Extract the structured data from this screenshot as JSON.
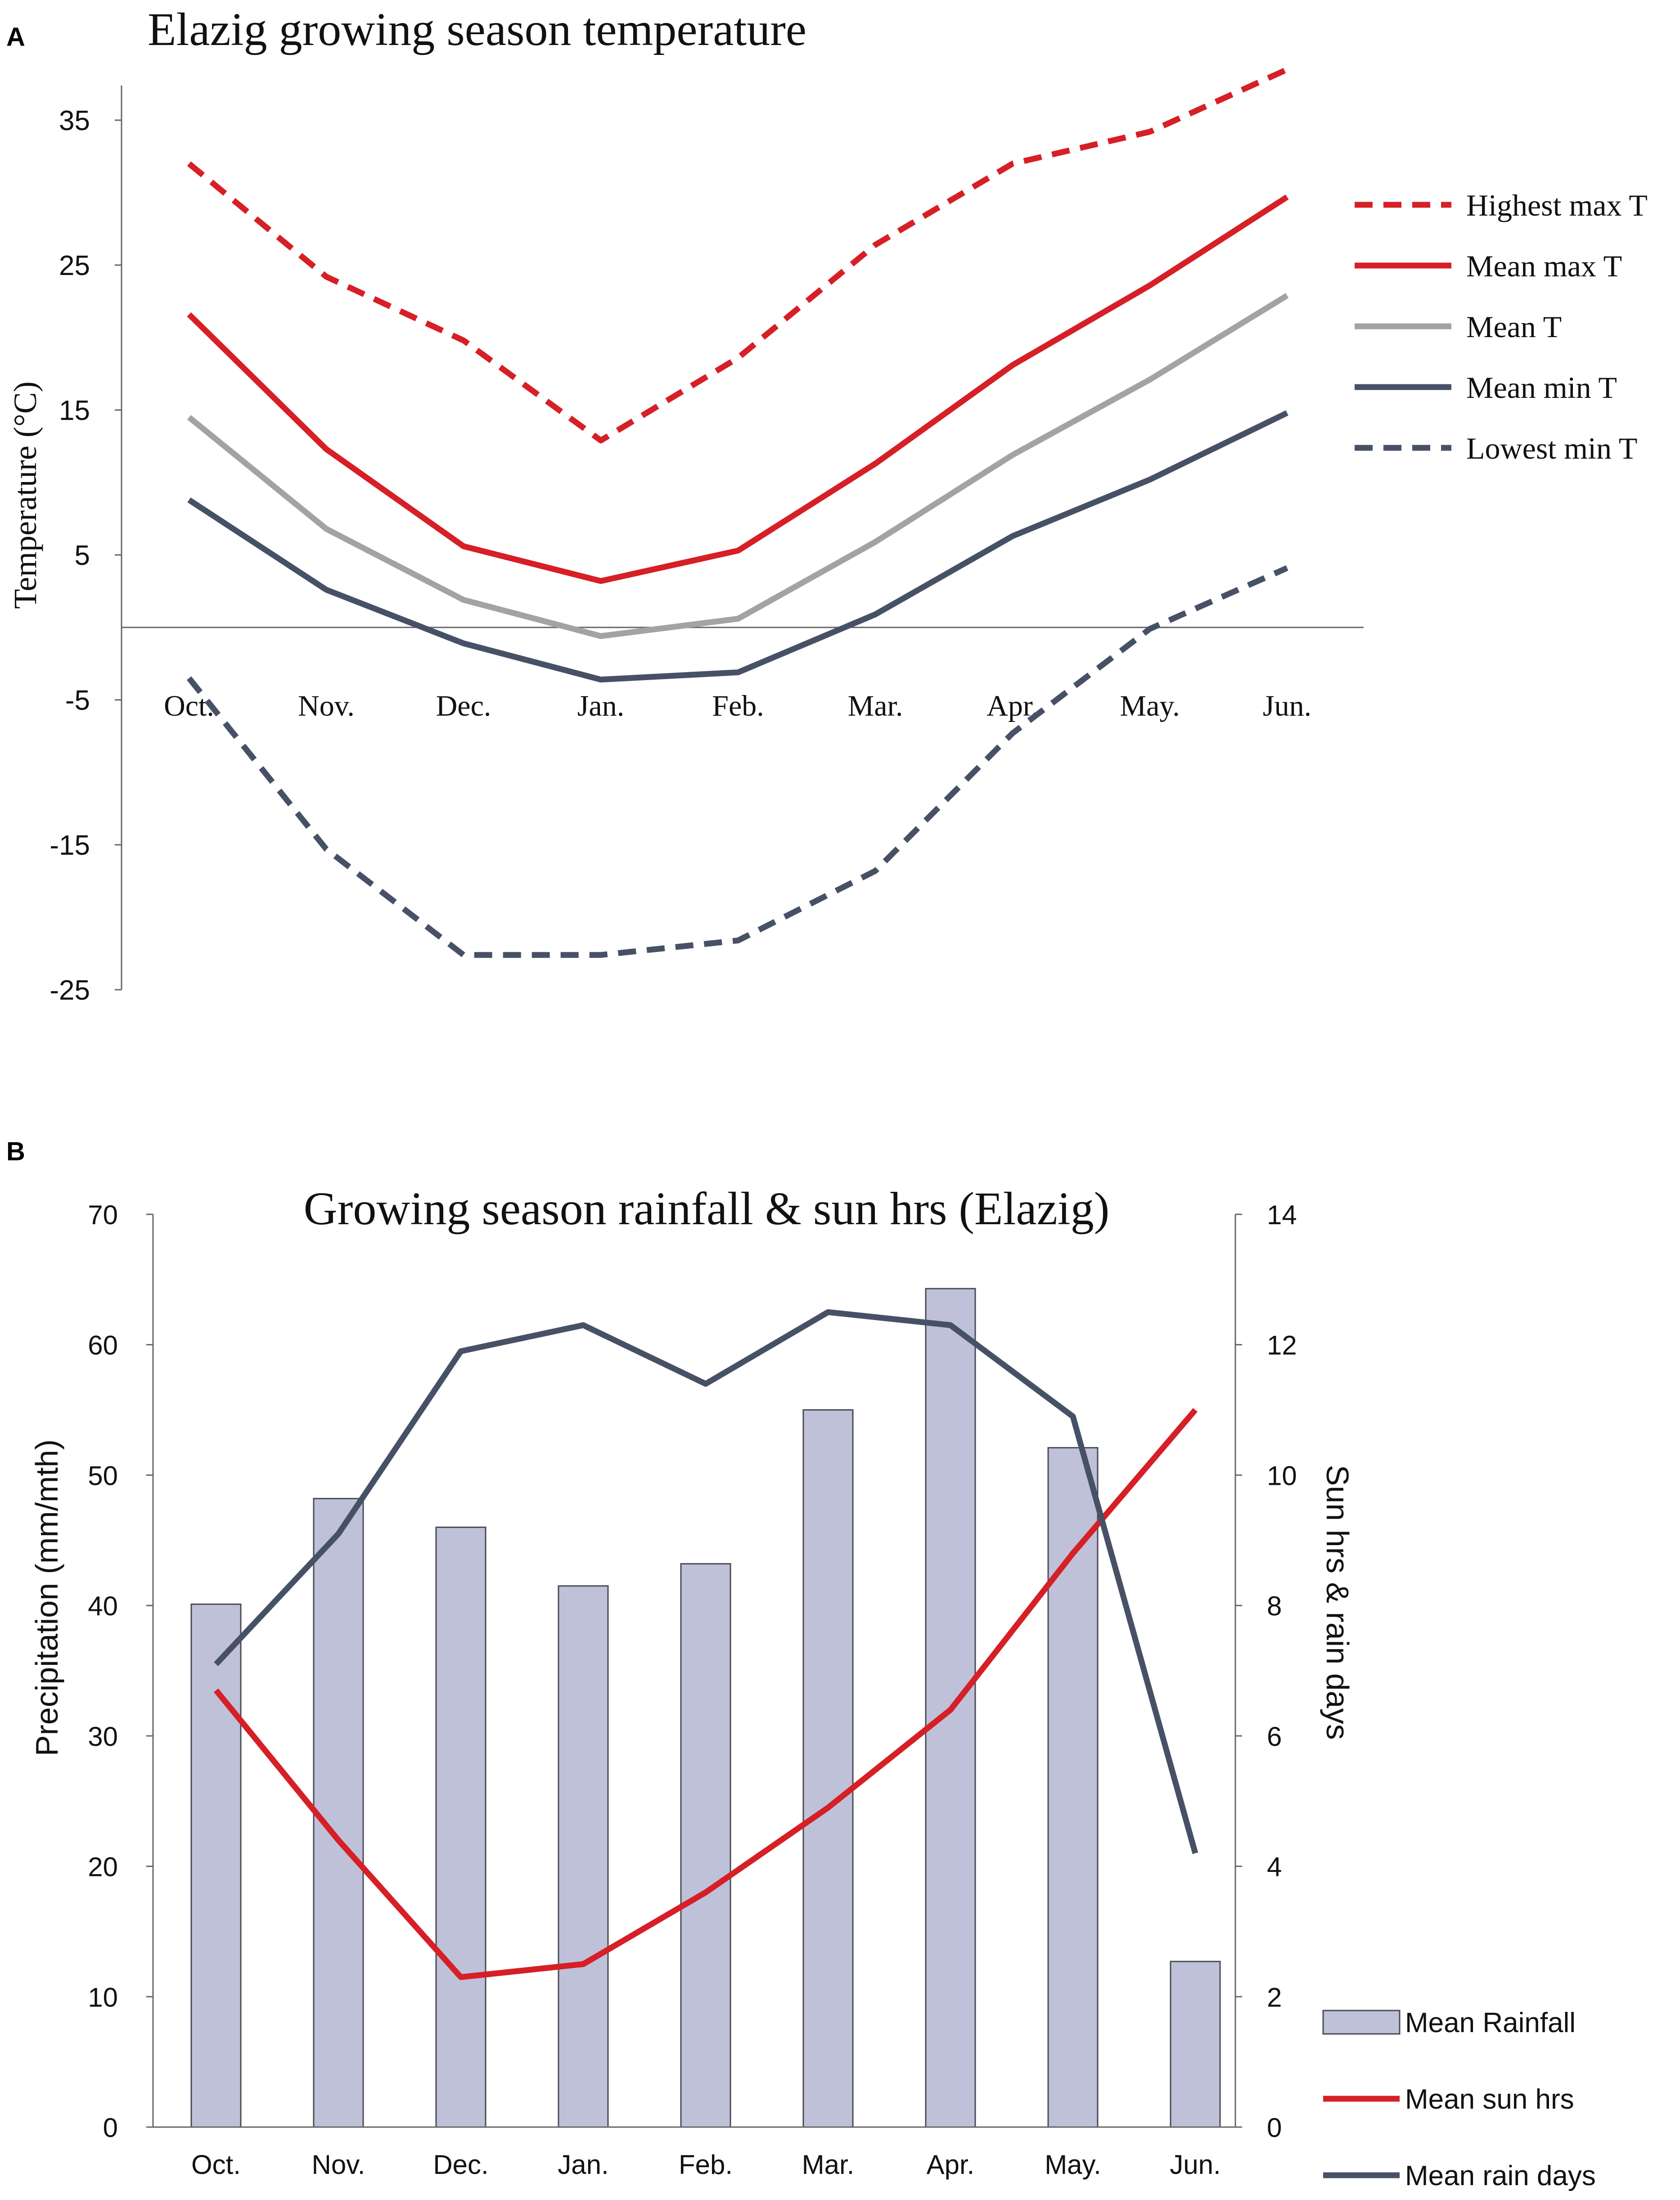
{
  "colors": {
    "red": "#d61f26",
    "gray": "#a3a3a3",
    "navy": "#475166",
    "bar_fill": "#bfc1d9",
    "bar_stroke": "#4a4a55",
    "axis": "#666666"
  },
  "chart_data": [
    {
      "panel": "A",
      "type": "line",
      "title": "Elazig growing season temperature",
      "xlabel": "",
      "ylabel": "Temperature (°C)",
      "ylim": [
        -25,
        40
      ],
      "yticks": [
        35,
        25,
        15,
        5,
        -5,
        -15,
        -25
      ],
      "ytick_labels": [
        "35",
        "25",
        "15",
        "5",
        "-5",
        "-15",
        "-25"
      ],
      "categories": [
        "Oct.",
        "Nov.",
        "Dec.",
        "Jan.",
        "Feb.",
        "Mar.",
        "Apr.",
        "May.",
        "Jun."
      ],
      "legend_position": "right",
      "series": [
        {
          "name": "Highest max T",
          "color": "red",
          "dashed": true,
          "values": [
            32,
            24.2,
            19.8,
            12.9,
            18.6,
            26.4,
            32,
            34.2,
            38.5
          ]
        },
        {
          "name": "Mean max T",
          "color": "red",
          "dashed": false,
          "values": [
            21.6,
            12.3,
            5.6,
            3.2,
            5.3,
            11.3,
            18.1,
            23.6,
            29.7
          ]
        },
        {
          "name": "Mean T",
          "color": "gray",
          "dashed": false,
          "values": [
            14.5,
            6.8,
            1.9,
            -0.6,
            0.6,
            5.9,
            11.9,
            17.1,
            22.9
          ]
        },
        {
          "name": "Mean min T",
          "color": "navy",
          "dashed": false,
          "values": [
            8.8,
            2.6,
            -1.1,
            -3.6,
            -3.1,
            0.9,
            6.3,
            10.2,
            14.8
          ]
        },
        {
          "name": "Lowest min T",
          "color": "navy",
          "dashed": true,
          "values": [
            -3.5,
            -15.3,
            -22.6,
            -22.6,
            -21.6,
            -16.8,
            -7.3,
            -0.1,
            4.1
          ]
        }
      ]
    },
    {
      "panel": "B",
      "type": "bar",
      "title": "Growing season rainfall & sun hrs (Elazig)",
      "xlabel": "",
      "ylabel": "Precipitation (mm/mth)",
      "y2label": "Sun hrs & rain days",
      "ylim": [
        0,
        70
      ],
      "y2lim": [
        0,
        14
      ],
      "yticks": [
        0,
        10,
        20,
        30,
        40,
        50,
        60,
        70
      ],
      "ytick_labels": [
        "0",
        "10",
        "20",
        "30",
        "40",
        "50",
        "60",
        "70"
      ],
      "y2ticks": [
        0,
        2,
        4,
        6,
        8,
        10,
        12,
        14
      ],
      "y2tick_labels": [
        "0",
        "2",
        "4",
        "6",
        "8",
        "10",
        "12",
        "14"
      ],
      "categories": [
        "Oct.",
        "Nov.",
        "Dec.",
        "Jan.",
        "Feb.",
        "Mar.",
        "Apr.",
        "May.",
        "Jun."
      ],
      "legend_position": "bottom-right",
      "series": [
        {
          "name": "Mean Rainfall",
          "kind": "bar",
          "axis": "left",
          "color": "bar_fill",
          "values": [
            40.1,
            48.2,
            46,
            41.5,
            43.2,
            55,
            64.3,
            52.1,
            12.7
          ]
        },
        {
          "name": "Mean sun hrs",
          "kind": "line",
          "axis": "right",
          "color": "red",
          "values": [
            6.7,
            4.4,
            2.3,
            2.5,
            3.6,
            4.9,
            6.4,
            8.8,
            11
          ]
        },
        {
          "name": "Mean rain days",
          "kind": "line",
          "axis": "right",
          "color": "navy",
          "values": [
            7.1,
            9.1,
            11.9,
            12.3,
            11.4,
            12.5,
            12.3,
            10.9,
            4.2
          ]
        }
      ]
    }
  ]
}
